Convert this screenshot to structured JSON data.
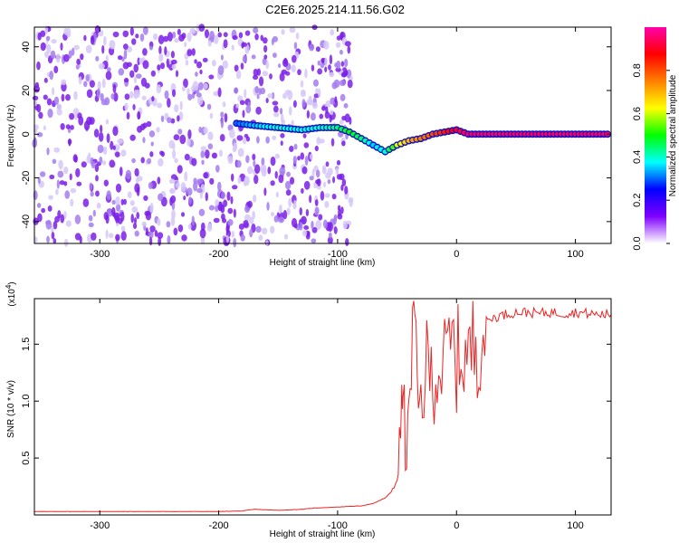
{
  "title": "C2E6.2025.214.11.56.G02",
  "chart_data": [
    {
      "type": "heatmap",
      "xlabel": "Height of straight line (km)",
      "ylabel": "Frequency (Hz)",
      "xlim": [
        -355,
        130
      ],
      "ylim": [
        -50,
        49
      ],
      "x_ticks": [
        -300,
        -200,
        -100,
        0,
        100
      ],
      "y_ticks": [
        -40,
        -20,
        0,
        20,
        40
      ],
      "colorbar": {
        "label": "Normalized spectral amplitude",
        "range": [
          0,
          1
        ],
        "ticks": [
          0.0,
          0.2,
          0.4,
          0.6,
          0.8
        ],
        "colors": [
          "#ffffff",
          "#7f00ff",
          "#0000ff",
          "#00ffff",
          "#00ff00",
          "#ffff00",
          "#ff8000",
          "#ff0000",
          "#ff00aa"
        ]
      },
      "noise_region": {
        "x_range": [
          -355,
          -88
        ],
        "freq_range": [
          -50,
          49
        ],
        "amplitude": 0.1
      },
      "signal_track": {
        "x": [
          -185,
          -170,
          -150,
          -130,
          -115,
          -100,
          -90,
          -80,
          -70,
          -60,
          -50,
          -40,
          -30,
          -20,
          -10,
          0,
          10,
          130
        ],
        "freq": [
          5,
          4,
          3,
          2,
          3,
          3,
          1,
          -2,
          -5,
          -8,
          -5,
          -3,
          -2,
          0,
          1,
          2,
          0,
          0
        ],
        "amplitude": [
          0.3,
          0.35,
          0.4,
          0.38,
          0.4,
          0.45,
          0.5,
          0.45,
          0.35,
          0.4,
          0.6,
          0.7,
          0.75,
          0.8,
          0.85,
          0.9,
          0.95,
          0.95
        ]
      }
    },
    {
      "type": "line",
      "xlabel": "Height of straight line (km)",
      "ylabel": "SNR (10 * v/v)",
      "y_multiplier": "(x10",
      "y_multiplier_exp": "4",
      "y_multiplier_close": ")",
      "xlim": [
        -355,
        130
      ],
      "ylim": [
        0,
        1.9
      ],
      "x_ticks": [
        -300,
        -200,
        -100,
        0,
        100
      ],
      "y_ticks": [
        0.5,
        1.0,
        1.5
      ],
      "color": "#ee2222",
      "series": [
        {
          "x": [
            -355,
            -300,
            -250,
            -200,
            -180,
            -170,
            -150,
            -130,
            -120,
            -100,
            -80,
            -70,
            -60,
            -55,
            -50,
            -48,
            -46,
            -45,
            -43,
            -40,
            -38,
            -35,
            -33,
            -30,
            -25,
            -20,
            -15,
            -10,
            -5,
            0,
            5,
            10,
            15,
            20,
            25,
            30,
            40,
            50,
            60,
            70,
            80,
            90,
            100,
            110,
            120,
            130
          ],
          "y": [
            0.03,
            0.03,
            0.03,
            0.03,
            0.035,
            0.05,
            0.04,
            0.05,
            0.06,
            0.07,
            0.08,
            0.1,
            0.15,
            0.2,
            0.35,
            0.6,
            0.9,
            1.2,
            0.5,
            0.8,
            1.5,
            1.85,
            0.9,
            1.0,
            1.3,
            1.2,
            1.3,
            1.3,
            1.5,
            1.35,
            1.45,
            1.35,
            1.55,
            1.6,
            1.7,
            1.73,
            1.76,
            1.78,
            1.78,
            1.77,
            1.78,
            1.77,
            1.78,
            1.77,
            1.76,
            1.76
          ]
        }
      ]
    }
  ]
}
